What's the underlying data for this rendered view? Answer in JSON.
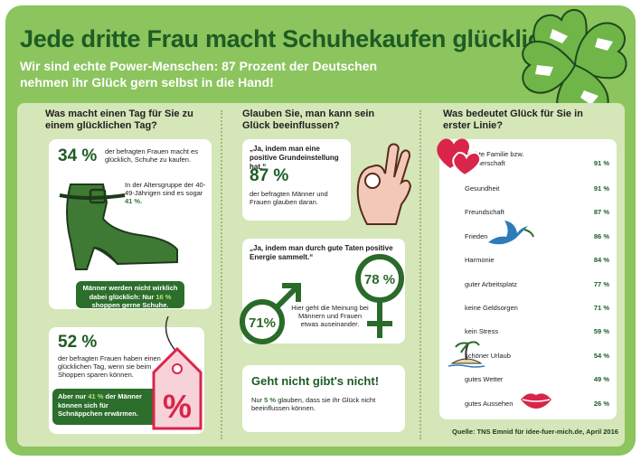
{
  "title": "Jede dritte Frau macht Schuhekaufen glücklich",
  "subtitle": "Wir sind echte Power-Menschen: 87 Prozent der Deutschen nehmen ihr Glück gern selbst in die Hand!",
  "colors": {
    "frame": "#8cc45e",
    "panel": "#d5e6b8",
    "dark_green": "#1d5c24",
    "accent_red": "#d9254a"
  },
  "col1": {
    "question": "Was macht einen Tag für Sie zu einem glücklichen Tag?",
    "card1": {
      "pct": "34 %",
      "text": "der befragten Frauen macht es glücklich, Schuhe zu kaufen.",
      "age_text_1": "In der Altersgruppe der 40-49-Jährigen sind es sogar ",
      "age_pct": "41 %.",
      "men_1": "Männer werden nicht wirklich dabei glücklich: Nur ",
      "men_pct": "16 %",
      "men_2": " shoppen gerne Schuhe."
    },
    "card2": {
      "pct": "52 %",
      "text": "der befragten Frauen haben einen glücklichen Tag, wenn sie beim Shoppen sparen können.",
      "men_1": "Aber nur ",
      "men_pct": "41 %",
      "men_2": " der Männer können sich für Schnäppchen erwärmen.",
      "tag_symbol": "%"
    }
  },
  "col2": {
    "question": "Glauben Sie, man kann sein Glück beeinflussen?",
    "card1": {
      "quote": "„Ja, indem man eine positive Grundeinstellung hat.“",
      "pct": "87 %",
      "text": "der befragten Männer und Frauen glauben daran."
    },
    "card2": {
      "quote": "„Ja, indem man durch gute Taten positive Energie sammelt.“",
      "male_pct": "71%",
      "female_pct": "78 %",
      "text": "Hier geht die Meinung bei Männern und Frauen etwas auseinander."
    },
    "card3": {
      "headline": "Geht nicht gibt's nicht!",
      "text_1": "Nur ",
      "pct": "5 %",
      "text_2": " glauben, dass sie ihr Glück nicht beeinflussen können."
    }
  },
  "col3": {
    "question": "Was bedeutet Glück für Sie in erster Linie?",
    "items": [
      {
        "label": "intakte Familie bzw.",
        "value": ""
      },
      {
        "label": "Partnerschaft",
        "value": "91 %"
      },
      {
        "label": "Gesundheit",
        "value": "91 %"
      },
      {
        "label": "Freundschaft",
        "value": "87 %"
      },
      {
        "label": "Frieden",
        "value": "86 %"
      },
      {
        "label": "Harmonie",
        "value": "84 %"
      },
      {
        "label": "guter Arbeitsplatz",
        "value": "77 %"
      },
      {
        "label": "keine Geldsorgen",
        "value": "71 %"
      },
      {
        "label": "kein Stress",
        "value": "59 %"
      },
      {
        "label": "schöner Urlaub",
        "value": "54 %"
      },
      {
        "label": "gutes Wetter",
        "value": "49 %"
      },
      {
        "label": "gutes Aussehen",
        "value": "26 %"
      }
    ]
  },
  "source": "Quelle: TNS Emnid für idee-fuer-mich.de, April 2016",
  "icons": [
    "clover-icon",
    "shoe-icon",
    "price-tag-icon",
    "ok-hand-icon",
    "male-symbol-icon",
    "female-symbol-icon",
    "hearts-icon",
    "dove-icon",
    "island-icon",
    "lips-icon"
  ]
}
